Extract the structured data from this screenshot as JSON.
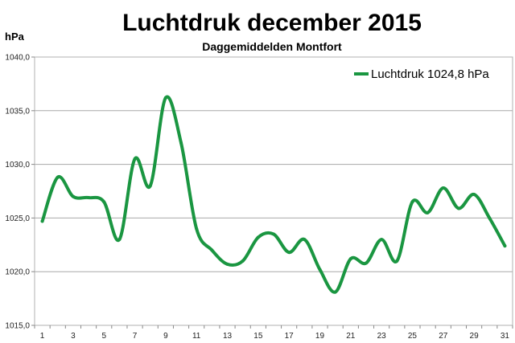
{
  "chart_data": {
    "type": "line",
    "title": "Luchtdruk december 2015",
    "subtitle": "Daggemiddelden Montfort",
    "ylabel": "hPa",
    "xlabel": "",
    "ylim": [
      1015.0,
      1040.0
    ],
    "yticks": [
      "1015,0",
      "1020,0",
      "1025,0",
      "1030,0",
      "1035,0",
      "1040,0"
    ],
    "xlim": [
      1,
      31
    ],
    "xticks": [
      "1",
      "3",
      "5",
      "7",
      "9",
      "11",
      "13",
      "15",
      "17",
      "19",
      "21",
      "23",
      "25",
      "27",
      "29",
      "31"
    ],
    "grid": true,
    "legend_position": "top-right",
    "series": [
      {
        "name": "Luchtdruk 1024,8 hPa",
        "color": "#1a9641",
        "x": [
          1,
          2,
          3,
          4,
          5,
          6,
          7,
          8,
          9,
          10,
          11,
          12,
          13,
          14,
          15,
          16,
          17,
          18,
          19,
          20,
          21,
          22,
          23,
          24,
          25,
          26,
          27,
          28,
          29,
          30,
          31
        ],
        "values": [
          1024.7,
          1028.8,
          1027.0,
          1026.9,
          1026.5,
          1023.0,
          1030.5,
          1028.0,
          1036.2,
          1032.0,
          1024.0,
          1022.0,
          1020.7,
          1021.0,
          1023.2,
          1023.5,
          1021.8,
          1023.0,
          1020.2,
          1018.1,
          1021.2,
          1020.8,
          1023.0,
          1021.0,
          1026.5,
          1025.5,
          1027.8,
          1025.9,
          1027.2,
          1025.0,
          1022.4
        ]
      }
    ]
  }
}
